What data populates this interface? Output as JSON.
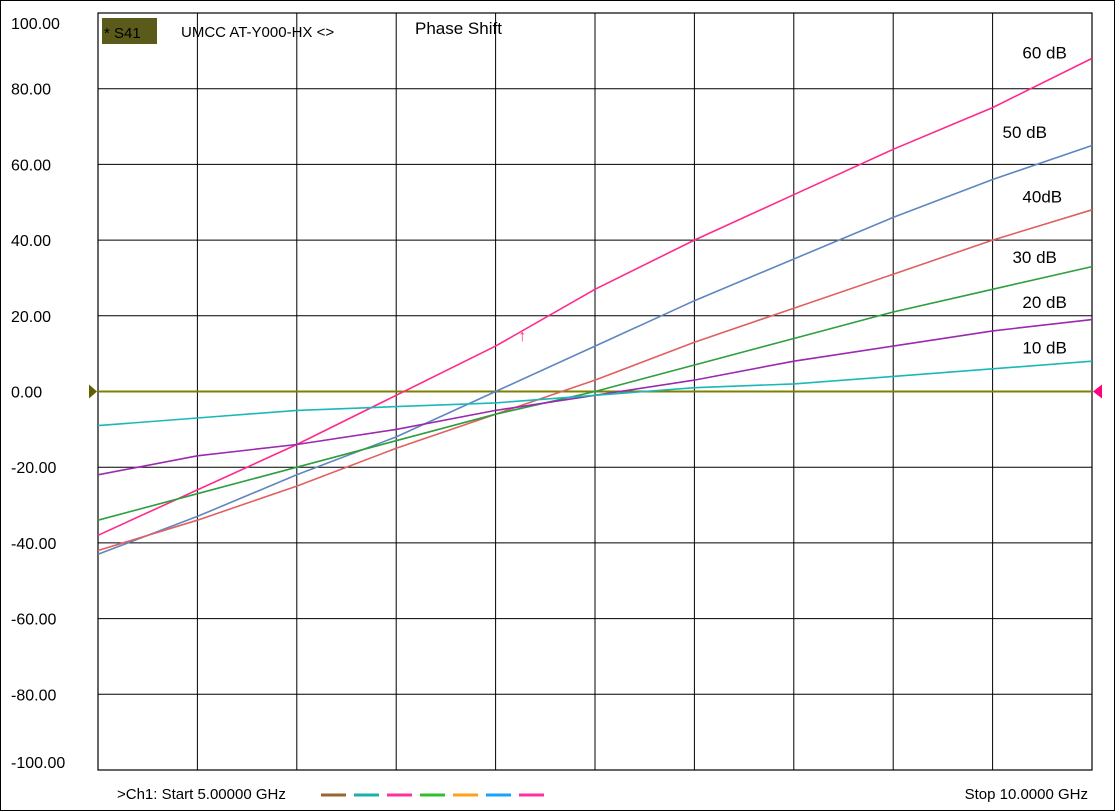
{
  "header": {
    "trace_badge": "* S41",
    "measurement": "UMCC  AT-Y000-HX <>",
    "title": "Phase Shift"
  },
  "footer": {
    "start_label": ">Ch1: Start  5.00000 GHz",
    "stop_label": "Stop  10.0000 GHz"
  },
  "colors": {
    "badge_bg": "#5a5a1a",
    "grid": "#000000",
    "reference_line": "#808000",
    "reference_marker_left": "#606000",
    "reference_marker_right": "#ff0080"
  },
  "trace_swatches": [
    "#996633",
    "#1ab0b0",
    "#ff2fa0",
    "#2fbf2f",
    "#ff9f1a",
    "#1aa0ff",
    "#ff2fa0"
  ],
  "chart_data": {
    "type": "line",
    "x_range": [
      5.0,
      10.0
    ],
    "ylim": [
      -100,
      100
    ],
    "yticks": [
      "100.00",
      "80.00",
      "60.00",
      "40.00",
      "20.00",
      "0.00",
      "-20.00",
      "-40.00",
      "-60.00",
      "-80.00",
      "-100.00"
    ],
    "ytick_values": [
      100,
      80,
      60,
      40,
      20,
      0,
      -20,
      -40,
      -60,
      -80,
      -100
    ],
    "grid": true,
    "reference_value": 0,
    "marker": {
      "series": "60 dB",
      "x": 7.14,
      "y": 17,
      "symbol": "↑"
    },
    "series": [
      {
        "name": "60 dB",
        "color": "#ff2a8a",
        "x": [
          5.0,
          5.5,
          6.0,
          6.5,
          7.0,
          7.5,
          8.0,
          8.5,
          9.0,
          9.5,
          10.0
        ],
        "y": [
          -38,
          -26,
          -14,
          -1,
          12,
          27,
          40,
          52,
          64,
          75,
          88
        ]
      },
      {
        "name": "50 dB",
        "color": "#5f86c0",
        "x": [
          5.0,
          5.5,
          6.0,
          6.5,
          7.0,
          7.5,
          8.0,
          8.5,
          9.0,
          9.5,
          10.0
        ],
        "y": [
          -43,
          -33,
          -22,
          -12,
          0,
          12,
          24,
          35,
          46,
          56,
          65
        ]
      },
      {
        "name": "40dB",
        "color": "#e06060",
        "x": [
          5.0,
          5.5,
          6.0,
          6.5,
          7.0,
          7.5,
          8.0,
          8.5,
          9.0,
          9.5,
          10.0
        ],
        "y": [
          -42,
          -34,
          -25,
          -15,
          -6,
          3,
          13,
          22,
          31,
          40,
          48
        ]
      },
      {
        "name": "30 dB",
        "color": "#2e9e3e",
        "x": [
          5.0,
          5.5,
          6.0,
          6.5,
          7.0,
          7.5,
          8.0,
          8.5,
          9.0,
          9.5,
          10.0
        ],
        "y": [
          -34,
          -27,
          -20,
          -13,
          -6,
          0,
          7,
          14,
          21,
          27,
          33
        ]
      },
      {
        "name": "20 dB",
        "color": "#9a2ab0",
        "x": [
          5.0,
          5.5,
          6.0,
          6.5,
          7.0,
          7.5,
          8.0,
          8.5,
          9.0,
          9.5,
          10.0
        ],
        "y": [
          -22,
          -17,
          -14,
          -10,
          -5,
          -1,
          3,
          8,
          12,
          16,
          19
        ]
      },
      {
        "name": "10 dB",
        "color": "#1ab8b8",
        "x": [
          5.0,
          5.5,
          6.0,
          6.5,
          7.0,
          7.5,
          8.0,
          8.5,
          9.0,
          9.5,
          10.0
        ],
        "y": [
          -9,
          -7,
          -5,
          -4,
          -3,
          -1,
          1,
          2,
          4,
          6,
          8
        ]
      }
    ],
    "series_labels": [
      {
        "text": "60 dB",
        "series": "60 dB",
        "x": 9.65,
        "y": 88
      },
      {
        "text": "50 dB",
        "series": "50 dB",
        "x": 9.55,
        "y": 67
      },
      {
        "text": "40dB",
        "series": "40dB",
        "x": 9.65,
        "y": 50
      },
      {
        "text": "30 dB",
        "series": "30 dB",
        "x": 9.6,
        "y": 34
      },
      {
        "text": "20 dB",
        "series": "20 dB",
        "x": 9.65,
        "y": 22
      },
      {
        "text": "10 dB",
        "series": "10 dB",
        "x": 9.65,
        "y": 10
      }
    ]
  }
}
